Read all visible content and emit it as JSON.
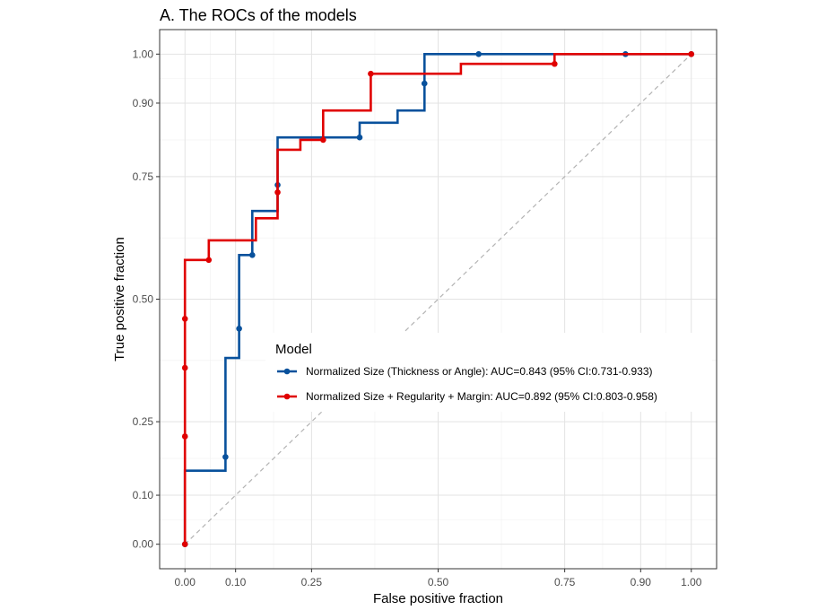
{
  "chart_data": {
    "type": "line",
    "title": "A. The ROCs of the models",
    "xlabel": "False positive fraction",
    "ylabel": "True positive fraction",
    "xlim": [
      -0.05,
      1.05
    ],
    "ylim": [
      -0.05,
      1.05
    ],
    "x_ticks": [
      {
        "value": 0.0,
        "label": "0.00"
      },
      {
        "value": 0.1,
        "label": "0.10"
      },
      {
        "value": 0.25,
        "label": "0.25"
      },
      {
        "value": 0.5,
        "label": "0.50"
      },
      {
        "value": 0.75,
        "label": "0.75"
      },
      {
        "value": 0.9,
        "label": "0.90"
      },
      {
        "value": 1.0,
        "label": "1.00"
      }
    ],
    "y_ticks": [
      {
        "value": 0.0,
        "label": "0.00"
      },
      {
        "value": 0.1,
        "label": "0.10"
      },
      {
        "value": 0.25,
        "label": "0.25"
      },
      {
        "value": 0.5,
        "label": "0.50"
      },
      {
        "value": 0.75,
        "label": "0.75"
      },
      {
        "value": 0.9,
        "label": "0.90"
      },
      {
        "value": 1.0,
        "label": "1.00"
      }
    ],
    "grid": true,
    "reference_line": {
      "from": [
        0,
        0
      ],
      "to": [
        1,
        1
      ],
      "style": "dashed",
      "color": "#b3b3b3"
    },
    "legend": {
      "title": "Model",
      "position": "inside-center-right"
    },
    "series": [
      {
        "name": "Normalized Size (Thickness or Angle): AUC=0.843 (95% CI:0.731-0.933)",
        "color": "#08519c",
        "step": [
          [
            0,
            0
          ],
          [
            0,
            0.15
          ],
          [
            0.08,
            0.15
          ],
          [
            0.08,
            0.38
          ],
          [
            0.107,
            0.38
          ],
          [
            0.107,
            0.59
          ],
          [
            0.133,
            0.59
          ],
          [
            0.133,
            0.68
          ],
          [
            0.183,
            0.68
          ],
          [
            0.183,
            0.83
          ],
          [
            0.345,
            0.83
          ],
          [
            0.345,
            0.86
          ],
          [
            0.42,
            0.86
          ],
          [
            0.42,
            0.885
          ],
          [
            0.473,
            0.885
          ],
          [
            0.473,
            1.0
          ],
          [
            1.0,
            1.0
          ]
        ],
        "points": [
          [
            0,
            0
          ],
          [
            0.08,
            0.178
          ],
          [
            0.107,
            0.44
          ],
          [
            0.133,
            0.59
          ],
          [
            0.183,
            0.733
          ],
          [
            0.345,
            0.83
          ],
          [
            0.473,
            0.94
          ],
          [
            0.58,
            1.0
          ],
          [
            0.87,
            1.0
          ],
          [
            1.0,
            1.0
          ]
        ]
      },
      {
        "name": "Normalized Size + Regularity + Margin: AUC=0.892 (95% CI:0.803-0.958)",
        "color": "#e00000",
        "step": [
          [
            0,
            0
          ],
          [
            0,
            0.58
          ],
          [
            0.047,
            0.58
          ],
          [
            0.047,
            0.62
          ],
          [
            0.14,
            0.62
          ],
          [
            0.14,
            0.665
          ],
          [
            0.183,
            0.665
          ],
          [
            0.183,
            0.805
          ],
          [
            0.228,
            0.805
          ],
          [
            0.228,
            0.825
          ],
          [
            0.273,
            0.825
          ],
          [
            0.273,
            0.885
          ],
          [
            0.367,
            0.885
          ],
          [
            0.367,
            0.96
          ],
          [
            0.545,
            0.96
          ],
          [
            0.545,
            0.98
          ],
          [
            0.73,
            0.98
          ],
          [
            0.73,
            1.0
          ],
          [
            1.0,
            1.0
          ]
        ],
        "points": [
          [
            0,
            0
          ],
          [
            0,
            0.22
          ],
          [
            0,
            0.36
          ],
          [
            0,
            0.46
          ],
          [
            0.047,
            0.58
          ],
          [
            0.183,
            0.718
          ],
          [
            0.273,
            0.825
          ],
          [
            0.367,
            0.96
          ],
          [
            0.73,
            0.98
          ],
          [
            1.0,
            1.0
          ]
        ]
      }
    ]
  }
}
